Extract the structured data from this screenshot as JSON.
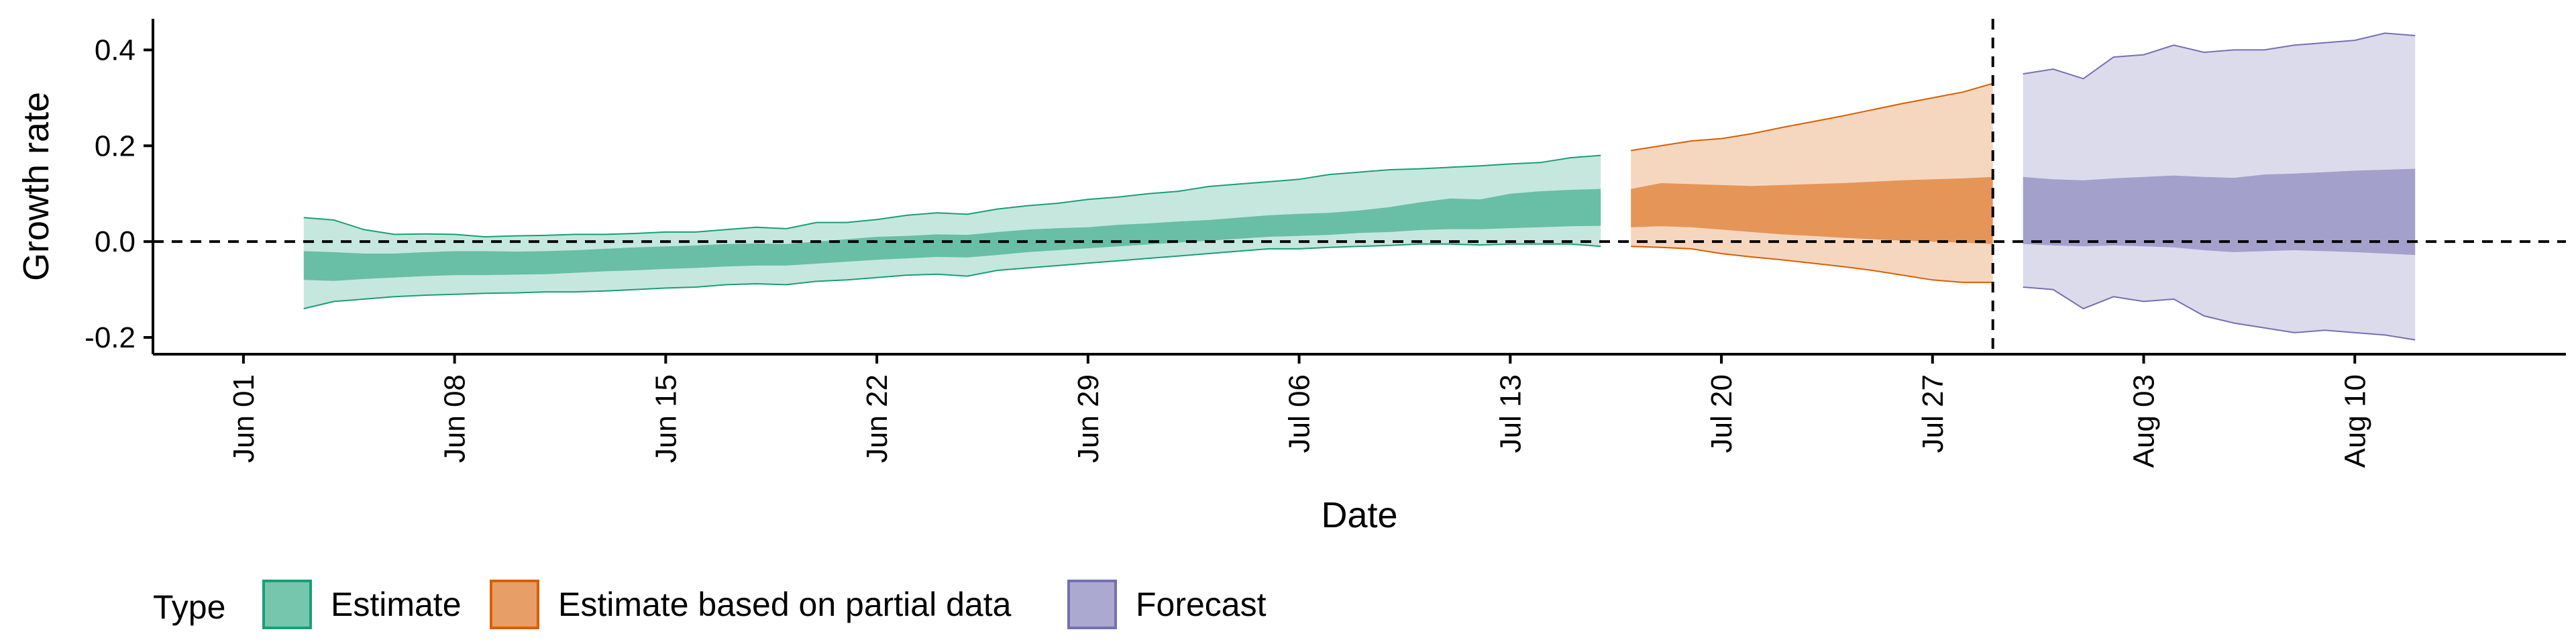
{
  "chart_data": {
    "type": "area",
    "xlabel": "Date",
    "ylabel": "Growth rate",
    "xlim": [
      "2021-05-29",
      "2021-08-17"
    ],
    "ylim": [
      -0.235,
      0.465
    ],
    "y_ticks": [
      {
        "value": 0.4,
        "label": "0.4"
      },
      {
        "value": 0.2,
        "label": "0.2"
      },
      {
        "value": 0.0,
        "label": "0.0"
      },
      {
        "value": -0.2,
        "label": "-0.2"
      }
    ],
    "x_ticks": [
      {
        "date": "2021-06-01",
        "label": "Jun 01"
      },
      {
        "date": "2021-06-08",
        "label": "Jun 08"
      },
      {
        "date": "2021-06-15",
        "label": "Jun 15"
      },
      {
        "date": "2021-06-22",
        "label": "Jun 22"
      },
      {
        "date": "2021-06-29",
        "label": "Jun 29"
      },
      {
        "date": "2021-07-06",
        "label": "Jul 06"
      },
      {
        "date": "2021-07-13",
        "label": "Jul 13"
      },
      {
        "date": "2021-07-20",
        "label": "Jul 20"
      },
      {
        "date": "2021-07-27",
        "label": "Jul 27"
      },
      {
        "date": "2021-08-03",
        "label": "Aug 03"
      },
      {
        "date": "2021-08-10",
        "label": "Aug 10"
      }
    ],
    "reference_lines": [
      {
        "axis": "y",
        "value": 0,
        "style": "dashed"
      },
      {
        "axis": "x",
        "value": "2021-07-29",
        "style": "dashed"
      }
    ],
    "grid": false,
    "legend": {
      "title": "Type",
      "position": "bottom-left"
    },
    "series": [
      {
        "name": "Estimate",
        "color": "#1b9e77",
        "x": [
          "2021-06-03",
          "2021-06-04",
          "2021-06-05",
          "2021-06-06",
          "2021-06-07",
          "2021-06-08",
          "2021-06-09",
          "2021-06-10",
          "2021-06-11",
          "2021-06-12",
          "2021-06-13",
          "2021-06-14",
          "2021-06-15",
          "2021-06-16",
          "2021-06-17",
          "2021-06-18",
          "2021-06-19",
          "2021-06-20",
          "2021-06-21",
          "2021-06-22",
          "2021-06-23",
          "2021-06-24",
          "2021-06-25",
          "2021-06-26",
          "2021-06-27",
          "2021-06-28",
          "2021-06-29",
          "2021-06-30",
          "2021-07-01",
          "2021-07-02",
          "2021-07-03",
          "2021-07-04",
          "2021-07-05",
          "2021-07-06",
          "2021-07-07",
          "2021-07-08",
          "2021-07-09",
          "2021-07-10",
          "2021-07-11",
          "2021-07-12",
          "2021-07-13",
          "2021-07-14",
          "2021-07-15",
          "2021-07-16"
        ],
        "outer_upper": [
          0.05,
          0.045,
          0.025,
          0.015,
          0.016,
          0.015,
          0.01,
          0.012,
          0.013,
          0.015,
          0.015,
          0.017,
          0.02,
          0.02,
          0.025,
          0.03,
          0.027,
          0.04,
          0.04,
          0.046,
          0.055,
          0.06,
          0.057,
          0.068,
          0.075,
          0.08,
          0.088,
          0.093,
          0.1,
          0.105,
          0.115,
          0.12,
          0.125,
          0.13,
          0.14,
          0.145,
          0.15,
          0.152,
          0.155,
          0.158,
          0.162,
          0.165,
          0.175,
          0.18
        ],
        "outer_lower": [
          -0.14,
          -0.125,
          -0.12,
          -0.115,
          -0.112,
          -0.11,
          -0.108,
          -0.107,
          -0.105,
          -0.105,
          -0.103,
          -0.1,
          -0.097,
          -0.095,
          -0.09,
          -0.088,
          -0.09,
          -0.083,
          -0.08,
          -0.075,
          -0.07,
          -0.068,
          -0.072,
          -0.06,
          -0.055,
          -0.05,
          -0.045,
          -0.04,
          -0.035,
          -0.03,
          -0.025,
          -0.02,
          -0.015,
          -0.015,
          -0.012,
          -0.01,
          -0.008,
          -0.005,
          -0.005,
          -0.007,
          -0.005,
          -0.005,
          -0.005,
          -0.01
        ],
        "inner_upper": [
          -0.02,
          -0.022,
          -0.025,
          -0.025,
          -0.022,
          -0.02,
          -0.02,
          -0.021,
          -0.02,
          -0.018,
          -0.015,
          -0.012,
          -0.01,
          -0.008,
          -0.005,
          -0.004,
          -0.005,
          0.0,
          0.005,
          0.01,
          0.012,
          0.015,
          0.014,
          0.02,
          0.025,
          0.028,
          0.03,
          0.035,
          0.038,
          0.042,
          0.045,
          0.05,
          0.055,
          0.058,
          0.06,
          0.065,
          0.072,
          0.082,
          0.09,
          0.088,
          0.1,
          0.105,
          0.108,
          0.11
        ],
        "inner_lower": [
          -0.08,
          -0.082,
          -0.078,
          -0.075,
          -0.072,
          -0.07,
          -0.07,
          -0.069,
          -0.068,
          -0.065,
          -0.062,
          -0.06,
          -0.057,
          -0.055,
          -0.052,
          -0.05,
          -0.05,
          -0.046,
          -0.042,
          -0.038,
          -0.035,
          -0.032,
          -0.033,
          -0.028,
          -0.022,
          -0.018,
          -0.014,
          -0.01,
          -0.006,
          -0.002,
          0.002,
          0.006,
          0.01,
          0.012,
          0.014,
          0.018,
          0.02,
          0.024,
          0.026,
          0.026,
          0.028,
          0.03,
          0.032,
          0.033
        ]
      },
      {
        "name": "Estimate based on partial data",
        "color": "#d95f02",
        "x": [
          "2021-07-17",
          "2021-07-18",
          "2021-07-19",
          "2021-07-20",
          "2021-07-21",
          "2021-07-22",
          "2021-07-23",
          "2021-07-24",
          "2021-07-25",
          "2021-07-26",
          "2021-07-27",
          "2021-07-28",
          "2021-07-29"
        ],
        "outer_upper": [
          0.19,
          0.2,
          0.21,
          0.215,
          0.225,
          0.238,
          0.25,
          0.262,
          0.275,
          0.288,
          0.3,
          0.312,
          0.33
        ],
        "outer_lower": [
          -0.01,
          -0.012,
          -0.015,
          -0.025,
          -0.032,
          -0.038,
          -0.045,
          -0.052,
          -0.06,
          -0.07,
          -0.08,
          -0.085,
          -0.085
        ],
        "inner_upper": [
          0.11,
          0.122,
          0.12,
          0.118,
          0.116,
          0.118,
          0.12,
          0.122,
          0.125,
          0.128,
          0.13,
          0.132,
          0.135
        ],
        "inner_lower": [
          0.03,
          0.032,
          0.03,
          0.025,
          0.02,
          0.015,
          0.012,
          0.008,
          0.005,
          0.002,
          0.0,
          -0.002,
          -0.005
        ]
      },
      {
        "name": "Forecast",
        "color": "#7570b3",
        "x": [
          "2021-07-30",
          "2021-07-31",
          "2021-08-01",
          "2021-08-02",
          "2021-08-03",
          "2021-08-04",
          "2021-08-05",
          "2021-08-06",
          "2021-08-07",
          "2021-08-08",
          "2021-08-09",
          "2021-08-10",
          "2021-08-11",
          "2021-08-12"
        ],
        "outer_upper": [
          0.35,
          0.36,
          0.34,
          0.385,
          0.39,
          0.41,
          0.395,
          0.4,
          0.4,
          0.41,
          0.415,
          0.42,
          0.435,
          0.43
        ],
        "outer_lower": [
          -0.095,
          -0.1,
          -0.14,
          -0.115,
          -0.125,
          -0.12,
          -0.155,
          -0.17,
          -0.18,
          -0.19,
          -0.185,
          -0.19,
          -0.195,
          -0.205
        ],
        "inner_upper": [
          0.135,
          0.13,
          0.128,
          0.132,
          0.135,
          0.138,
          0.135,
          0.133,
          0.14,
          0.142,
          0.145,
          0.148,
          0.15,
          0.152
        ],
        "inner_lower": [
          -0.005,
          -0.008,
          -0.01,
          -0.008,
          -0.01,
          -0.012,
          -0.018,
          -0.022,
          -0.02,
          -0.018,
          -0.02,
          -0.022,
          -0.025,
          -0.028
        ]
      }
    ]
  }
}
